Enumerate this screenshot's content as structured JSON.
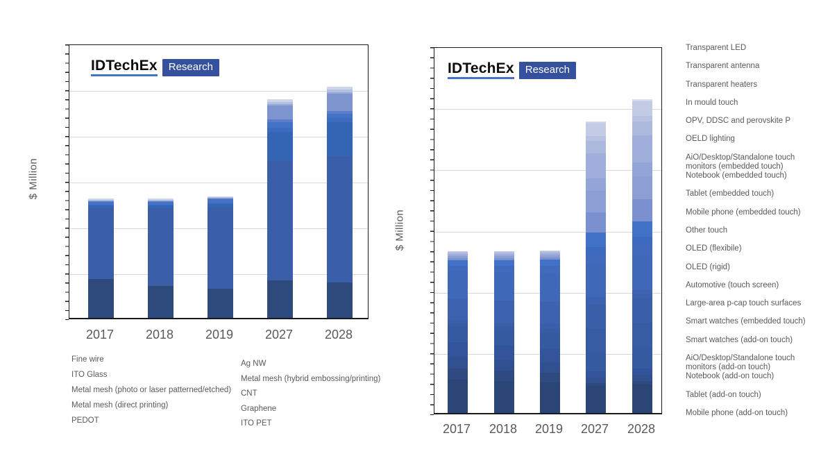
{
  "logo": {
    "brand": "IDTechEx",
    "badge": "Research"
  },
  "chart_data": [
    {
      "id": "materials-forecast",
      "type": "bar",
      "stacked": true,
      "title": "",
      "xlabel": "",
      "ylabel": "$ Million",
      "categories": [
        "2017",
        "2018",
        "2019",
        "2027",
        "2028"
      ],
      "ylim": [
        0,
        6
      ],
      "grid": true,
      "y_tick_labels_shown": false,
      "value_units": "relative gridline intervals (no numeric axis labels shown)",
      "legend_position": "bottom",
      "series": [
        {
          "name": "Fine wire",
          "color": "#2E4A7C",
          "values": [
            0.85,
            0.7,
            0.64,
            0.82,
            0.77
          ]
        },
        {
          "name": "ITO Glass",
          "color": "#3A5FA8",
          "values": [
            1.55,
            1.7,
            1.79,
            2.6,
            2.76
          ]
        },
        {
          "name": "Metal mesh (photo or laser patterned/etched)",
          "color": "#3465B5",
          "values": [
            0.05,
            0.05,
            0.06,
            0.64,
            0.74
          ]
        },
        {
          "name": "Metal mesh (direct printing)",
          "color": "#3C6CC0",
          "values": [
            0.02,
            0.02,
            0.02,
            0.09,
            0.09
          ]
        },
        {
          "name": "PEDOT",
          "color": "#4472C4",
          "values": [
            0.06,
            0.06,
            0.08,
            0.13,
            0.1
          ]
        },
        {
          "name": "Ag NW",
          "color": "#5C7DCB",
          "values": [
            0.01,
            0.01,
            0.01,
            0.05,
            0.06
          ]
        },
        {
          "name": "Metal mesh (hybrid embossing/printing)",
          "color": "#7E94CE",
          "values": [
            0.01,
            0.01,
            0.01,
            0.3,
            0.37
          ]
        },
        {
          "name": "CNT",
          "color": "#98A9D8",
          "values": [
            0.01,
            0.01,
            0.01,
            0.03,
            0.04
          ]
        },
        {
          "name": "Graphene",
          "color": "#B3C0E2",
          "values": [
            0.01,
            0.01,
            0.01,
            0.06,
            0.06
          ]
        },
        {
          "name": "ITO PET",
          "color": "#CDD5EC",
          "values": [
            0.03,
            0.03,
            0.03,
            0.05,
            0.05
          ]
        }
      ],
      "legend_columns": [
        [
          "Fine wire",
          "ITO Glass",
          "Metal mesh (photo or laser patterned/etched)",
          "Metal mesh (direct printing)",
          "PEDOT"
        ],
        [
          "Ag NW",
          "Metal mesh (hybrid embossing/printing)",
          "CNT",
          "Graphene",
          "ITO PET"
        ]
      ]
    },
    {
      "id": "applications-forecast",
      "type": "bar",
      "stacked": true,
      "title": "",
      "xlabel": "",
      "ylabel": "$ Million",
      "categories": [
        "2017",
        "2018",
        "2019",
        "2027",
        "2028"
      ],
      "ylim": [
        0,
        6
      ],
      "grid": true,
      "y_tick_labels_shown": false,
      "value_units": "relative gridline intervals (no numeric axis labels shown)",
      "legend_position": "right",
      "series": [
        {
          "name": "Mobile phone (add-on touch)",
          "color": "#2B4576",
          "values": [
            0.55,
            0.52,
            0.5,
            0.44,
            0.46
          ]
        },
        {
          "name": "Tablet (add-on touch)",
          "color": "#2E4A80",
          "values": [
            0.18,
            0.17,
            0.16,
            0.05,
            0.06
          ]
        },
        {
          "name": "Notebook (add-on touch)",
          "color": "#305090",
          "values": [
            0.18,
            0.17,
            0.16,
            0.09,
            0.1
          ]
        },
        {
          "name": "AiO/Desktop/Standalone touch monitors (add-on touch)",
          "color": "#32549A",
          "values": [
            0.25,
            0.24,
            0.23,
            0.1,
            0.11
          ]
        },
        {
          "name": "Smart watches (add-on touch)",
          "color": "#365AA0",
          "values": [
            0.26,
            0.26,
            0.26,
            0.32,
            0.34
          ]
        },
        {
          "name": "Smart watches (embedded touch)",
          "color": "#385CA4",
          "values": [
            0.05,
            0.06,
            0.07,
            0.38,
            0.4
          ]
        },
        {
          "name": "Large-area p-cap touch surfaces",
          "color": "#3A5FA8",
          "values": [
            0.05,
            0.06,
            0.07,
            0.39,
            0.41
          ]
        },
        {
          "name": "Automotive (touch screen)",
          "color": "#3D63B0",
          "values": [
            0.35,
            0.36,
            0.37,
            0.12,
            0.13
          ]
        },
        {
          "name": "OLED (rigid)",
          "color": "#4068B8",
          "values": [
            0.45,
            0.46,
            0.46,
            0.54,
            0.57
          ]
        },
        {
          "name": "OLED (flexibile)",
          "color": "#4169BC",
          "values": [
            0.05,
            0.06,
            0.08,
            0.14,
            0.15
          ]
        },
        {
          "name": "Other touch",
          "color": "#3E6ABD",
          "values": [
            0.04,
            0.04,
            0.05,
            0.14,
            0.15
          ]
        },
        {
          "name": "Mobile phone (embedded touch)",
          "color": "#4272C8",
          "values": [
            0.09,
            0.1,
            0.1,
            0.24,
            0.25
          ]
        },
        {
          "name": "Tablet (embedded touch)",
          "color": "#7B90CE",
          "values": [
            0.03,
            0.03,
            0.03,
            0.33,
            0.36
          ]
        },
        {
          "name": "Notebook (embedded touch)",
          "color": "#8C9ED4",
          "values": [
            0.03,
            0.03,
            0.03,
            0.35,
            0.38
          ]
        },
        {
          "name": "AiO/Desktop/Standalone touch monitors (embedded touch)",
          "color": "#93A4D6",
          "values": [
            0.02,
            0.02,
            0.02,
            0.21,
            0.23
          ]
        },
        {
          "name": "OELD lighting",
          "color": "#9FAEDA",
          "values": [
            0.02,
            0.02,
            0.02,
            0.4,
            0.44
          ]
        },
        {
          "name": "OPV, DDSC and perovskite P",
          "color": "#AEB9DE",
          "values": [
            0.02,
            0.02,
            0.02,
            0.21,
            0.23
          ]
        },
        {
          "name": "In mould touch",
          "color": "#B8C2E2",
          "values": [
            0.01,
            0.01,
            0.01,
            0.08,
            0.09
          ]
        },
        {
          "name": "Transparent heaters",
          "color": "#C3CBE5",
          "values": [
            0.01,
            0.01,
            0.01,
            0.2,
            0.23
          ]
        },
        {
          "name": "Transparent antenna",
          "color": "#CDD4EA",
          "values": [
            0.005,
            0.005,
            0.005,
            0.02,
            0.02
          ]
        },
        {
          "name": "Transparent LED",
          "color": "#D8DDF0",
          "values": [
            0.005,
            0.005,
            0.005,
            0.02,
            0.02
          ]
        }
      ],
      "legend_items_top_to_bottom": [
        "Transparent LED",
        "Transparent antenna",
        "Transparent heaters",
        "In mould touch",
        "OPV, DDSC and perovskite P",
        "OELD lighting",
        "AiO/Desktop/Standalone touch monitors (embedded touch)",
        "Notebook (embedded touch)",
        "Tablet (embedded touch)",
        "Mobile phone (embedded touch)",
        "Other touch",
        "OLED (flexibile)",
        "OLED (rigid)",
        "Automotive (touch screen)",
        "Large-area p-cap touch surfaces",
        "Smart watches (embedded touch)",
        "Smart watches (add-on touch)",
        "AiO/Desktop/Standalone touch monitors (add-on touch)",
        "Notebook (add-on touch)",
        "Tablet (add-on touch)",
        "Mobile phone (add-on touch)"
      ]
    }
  ]
}
